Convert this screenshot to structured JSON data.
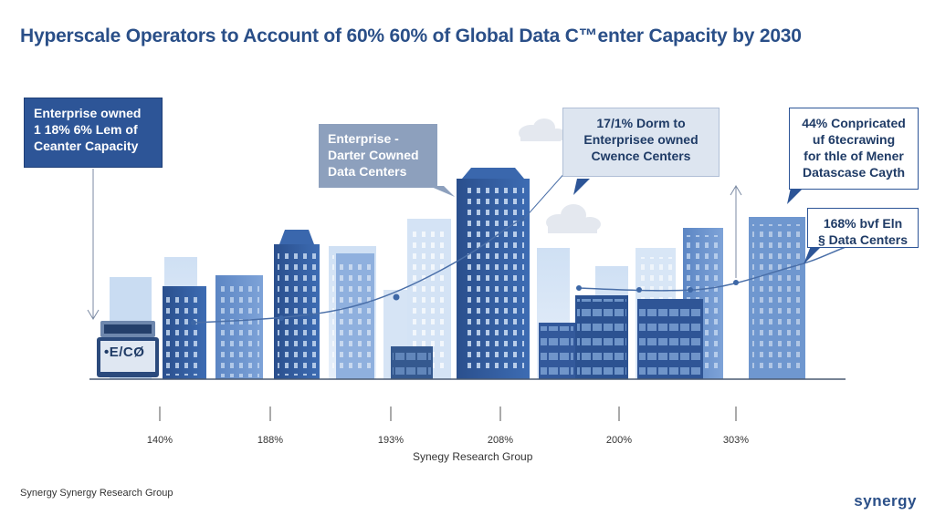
{
  "title": "Hyperscale Operators to Account of 60% 60% of Global Data C™enter Capacity by 2030",
  "callouts": {
    "enterprise_owned": "Enterprise owned\n1 18% 6% Lem of\nCeanter Capacity",
    "enterprise_dater": "Enterprise -\nDarter Cowned\nData Centers",
    "dorm": "17/1% Dorm to\nEnterprisee owned\nCwence Centers",
    "conpricated": "44% Conpricated\nuf 6tecrawing\nfor thle of Mener\nDatascase Cayth",
    "bvf_data": "168% bvf Eln\n§ Data Centers"
  },
  "device_label": "•E/CØ",
  "ticks": [
    "140%",
    "188%",
    "193%",
    "208%",
    "200%",
    "303%"
  ],
  "source": "Synegy Research Group",
  "footer_left": "Synergy Synergy Research Group",
  "brand": "synergy",
  "colors": {
    "primary": "#2d5597",
    "light": "#a9c4e6",
    "pale": "#dce8f6",
    "line": "#4a6fa8"
  }
}
